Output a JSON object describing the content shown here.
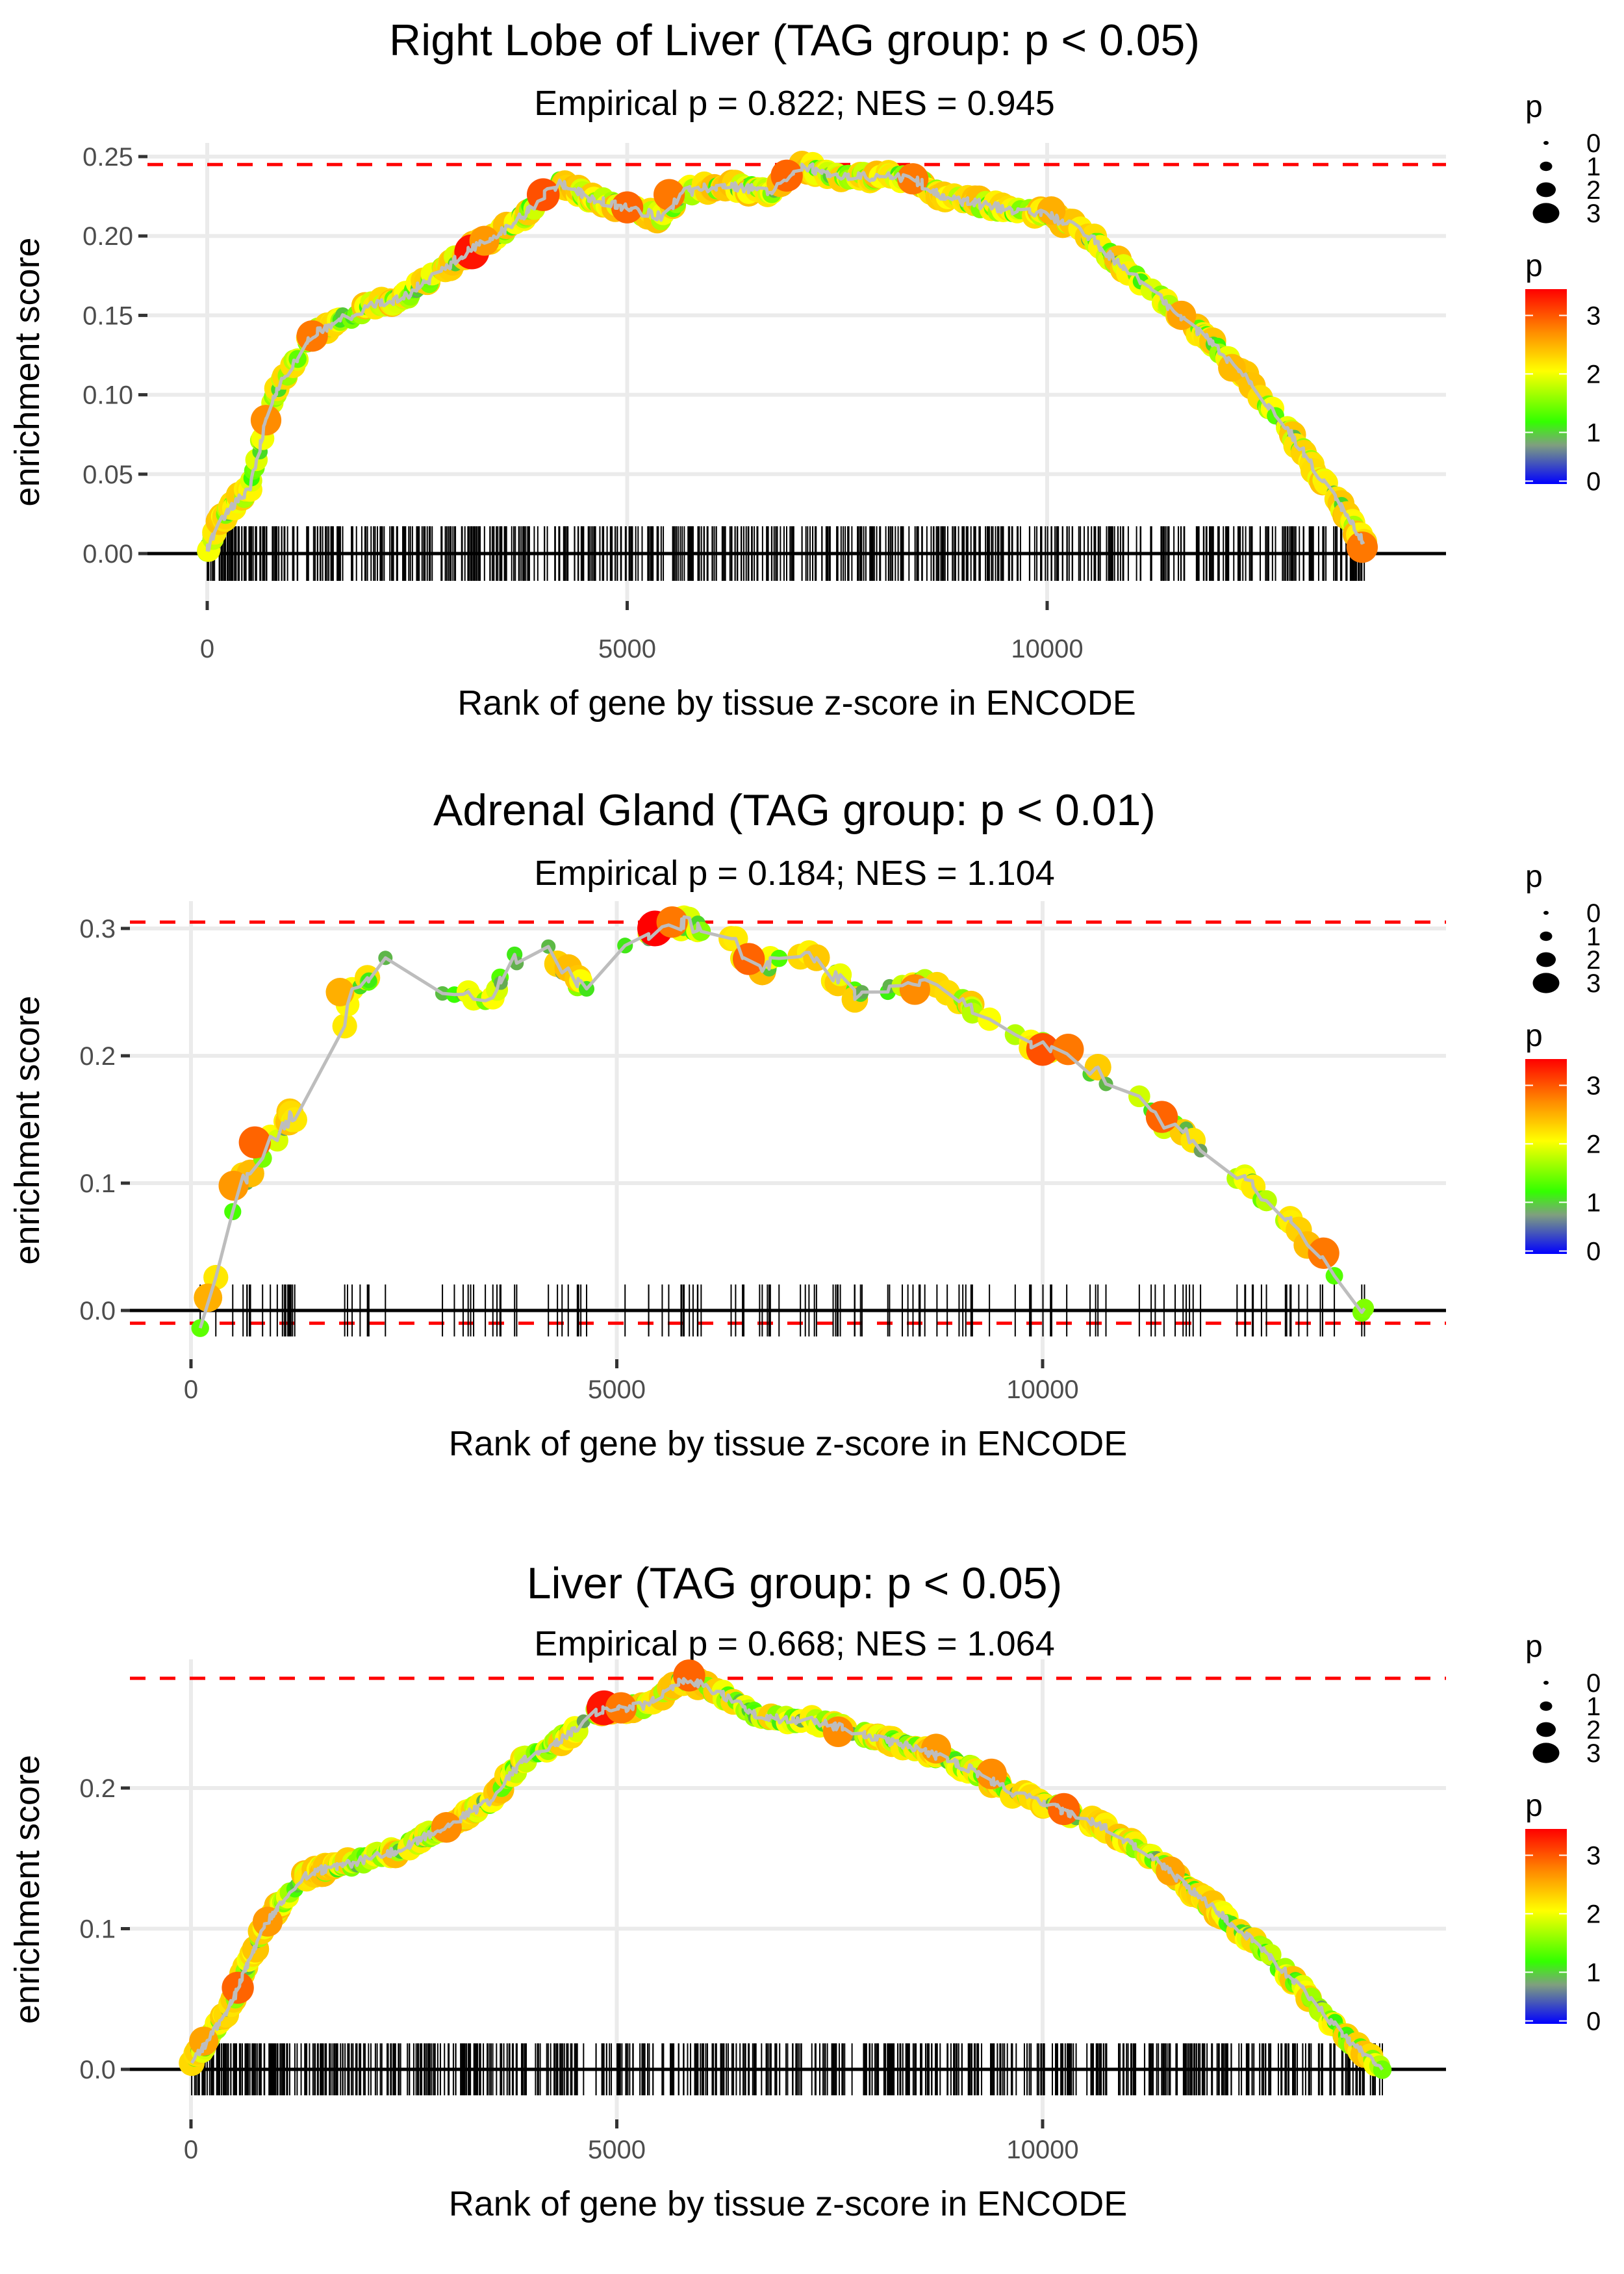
{
  "chart_data": [
    {
      "type": "line",
      "title": "Right Lobe of Liver (TAG group: p < 0.05)",
      "subtitle": "Empirical p = 0.822; NES = 0.945",
      "xlabel": "Rank of gene by tissue z-score in ENCODE",
      "ylabel": "enrichment score",
      "xlim": [
        -1000,
        14800
      ],
      "ylim": [
        -0.025,
        0.255
      ],
      "x_ticks": [
        0,
        5000,
        10000
      ],
      "x_tick_labels": [
        "0",
        "5000",
        "10000"
      ],
      "y_ticks": [
        0,
        0.05,
        0.1,
        0.15,
        0.2,
        0.25
      ],
      "y_tick_labels": [
        "0.00",
        "0.05",
        "0.10",
        "0.15",
        "0.20",
        "0.25"
      ],
      "max_es_line": 0.245,
      "min_es_line": null,
      "grid": true,
      "curve": [
        [
          0,
          0.003
        ],
        [
          150,
          0.02
        ],
        [
          300,
          0.03
        ],
        [
          500,
          0.04
        ],
        [
          600,
          0.06
        ],
        [
          700,
          0.085
        ],
        [
          850,
          0.105
        ],
        [
          1100,
          0.125
        ],
        [
          1250,
          0.138
        ],
        [
          1500,
          0.145
        ],
        [
          1900,
          0.155
        ],
        [
          2300,
          0.16
        ],
        [
          2700,
          0.175
        ],
        [
          3100,
          0.19
        ],
        [
          3600,
          0.205
        ],
        [
          4000,
          0.225
        ],
        [
          4200,
          0.233
        ],
        [
          4500,
          0.225
        ],
        [
          5000,
          0.218
        ],
        [
          5400,
          0.212
        ],
        [
          5700,
          0.228
        ],
        [
          6200,
          0.232
        ],
        [
          6700,
          0.228
        ],
        [
          7100,
          0.245
        ],
        [
          7500,
          0.236
        ],
        [
          8000,
          0.238
        ],
        [
          8400,
          0.236
        ],
        [
          8800,
          0.224
        ],
        [
          9400,
          0.218
        ],
        [
          10000,
          0.213
        ],
        [
          10400,
          0.205
        ],
        [
          10900,
          0.18
        ],
        [
          11400,
          0.158
        ],
        [
          11800,
          0.14
        ],
        [
          12200,
          0.12
        ],
        [
          12700,
          0.09
        ],
        [
          13100,
          0.06
        ],
        [
          13500,
          0.03
        ],
        [
          13800,
          0.005
        ]
      ],
      "highlight_points": [
        [
          700,
          0.084,
          3.2
        ],
        [
          1250,
          0.137,
          3.3
        ],
        [
          3150,
          0.19,
          3.8
        ],
        [
          3300,
          0.197,
          3.1
        ],
        [
          4000,
          0.226,
          3.5
        ],
        [
          5000,
          0.218,
          3.4
        ],
        [
          5500,
          0.226,
          3.3
        ],
        [
          6900,
          0.238,
          3.4
        ],
        [
          8400,
          0.236,
          3.3
        ],
        [
          10050,
          0.216,
          2.9
        ],
        [
          11600,
          0.15,
          3.0
        ],
        [
          12200,
          0.117,
          2.8
        ],
        [
          13750,
          0.004,
          3.3
        ]
      ],
      "point_density": 620,
      "rug_count": 620,
      "seed": 11
    },
    {
      "type": "line",
      "title": "Adrenal Gland (TAG group: p < 0.01)",
      "subtitle": "Empirical p = 0.184; NES = 1.104",
      "xlabel": "Rank of gene by tissue z-score in ENCODE",
      "ylabel": "enrichment score",
      "xlim": [
        -700,
        14700
      ],
      "ylim": [
        -0.035,
        0.32
      ],
      "x_ticks": [
        0,
        5000,
        10000
      ],
      "x_tick_labels": [
        "0",
        "5000",
        "10000"
      ],
      "y_ticks": [
        0,
        0.1,
        0.2,
        0.3
      ],
      "y_tick_labels": [
        "0.0",
        "0.1",
        "0.2",
        "0.3"
      ],
      "max_es_line": 0.305,
      "min_es_line": -0.01,
      "grid": true,
      "curve": [
        [
          100,
          -0.01
        ],
        [
          200,
          0.01
        ],
        [
          400,
          0.04
        ],
        [
          500,
          0.08
        ],
        [
          600,
          0.1
        ],
        [
          900,
          0.13
        ],
        [
          1100,
          0.145
        ],
        [
          1400,
          0.17
        ],
        [
          1500,
          0.16
        ],
        [
          1700,
          0.195
        ],
        [
          1800,
          0.22
        ],
        [
          1850,
          0.25
        ],
        [
          2200,
          0.27
        ],
        [
          2300,
          0.275
        ],
        [
          2900,
          0.255
        ],
        [
          3500,
          0.245
        ],
        [
          3800,
          0.275
        ],
        [
          4200,
          0.28
        ],
        [
          4700,
          0.245
        ],
        [
          5000,
          0.285
        ],
        [
          5400,
          0.295
        ],
        [
          5800,
          0.305
        ],
        [
          6400,
          0.29
        ],
        [
          6600,
          0.27
        ],
        [
          7200,
          0.28
        ],
        [
          7800,
          0.25
        ],
        [
          8300,
          0.255
        ],
        [
          8800,
          0.26
        ],
        [
          9200,
          0.235
        ],
        [
          9800,
          0.21
        ],
        [
          10200,
          0.205
        ],
        [
          10700,
          0.185
        ],
        [
          11400,
          0.15
        ],
        [
          12000,
          0.125
        ],
        [
          12600,
          0.09
        ],
        [
          13200,
          0.05
        ],
        [
          13800,
          0.0
        ]
      ],
      "highlight_points": [
        [
          200,
          0.01,
          2.9
        ],
        [
          500,
          0.098,
          3.1
        ],
        [
          750,
          0.132,
          3.4
        ],
        [
          1750,
          0.25,
          2.9
        ],
        [
          5450,
          0.3,
          3.9
        ],
        [
          5650,
          0.305,
          3.3
        ],
        [
          6550,
          0.276,
          3.4
        ],
        [
          8500,
          0.252,
          3.2
        ],
        [
          10000,
          0.205,
          3.5
        ],
        [
          10300,
          0.205,
          3.3
        ],
        [
          11400,
          0.152,
          3.4
        ],
        [
          13300,
          0.045,
          3.3
        ]
      ],
      "point_density": 150,
      "rug_count": 150,
      "seed": 23
    },
    {
      "type": "line",
      "title": "Liver (TAG group: p < 0.05)",
      "subtitle": "Empirical p = 0.668; NES = 1.064",
      "xlabel": "Rank of gene by tissue z-score in ENCODE",
      "ylabel": "enrichment score",
      "xlim": [
        -700,
        14700
      ],
      "ylim": [
        -0.04,
        0.3
      ],
      "x_ticks": [
        0,
        5000,
        10000
      ],
      "x_tick_labels": [
        "0",
        "5000",
        "10000"
      ],
      "y_ticks": [
        0,
        0.1,
        0.2
      ],
      "y_tick_labels": [
        "0.0",
        "0.1",
        "0.2"
      ],
      "max_es_line": 0.278,
      "min_es_line": null,
      "grid": true,
      "curve": [
        [
          0,
          0.003
        ],
        [
          300,
          0.03
        ],
        [
          500,
          0.05
        ],
        [
          700,
          0.08
        ],
        [
          900,
          0.105
        ],
        [
          1200,
          0.13
        ],
        [
          1400,
          0.14
        ],
        [
          1800,
          0.145
        ],
        [
          2400,
          0.155
        ],
        [
          2900,
          0.17
        ],
        [
          3500,
          0.19
        ],
        [
          3900,
          0.22
        ],
        [
          4300,
          0.232
        ],
        [
          4800,
          0.255
        ],
        [
          5300,
          0.258
        ],
        [
          5800,
          0.278
        ],
        [
          6200,
          0.268
        ],
        [
          6700,
          0.25
        ],
        [
          7300,
          0.248
        ],
        [
          7800,
          0.24
        ],
        [
          8500,
          0.228
        ],
        [
          9100,
          0.215
        ],
        [
          9600,
          0.198
        ],
        [
          10200,
          0.185
        ],
        [
          10800,
          0.17
        ],
        [
          11300,
          0.15
        ],
        [
          11900,
          0.12
        ],
        [
          12500,
          0.09
        ],
        [
          13000,
          0.06
        ],
        [
          13600,
          0.02
        ],
        [
          14000,
          0.0
        ]
      ],
      "highlight_points": [
        [
          150,
          0.02,
          3.0
        ],
        [
          550,
          0.058,
          3.4
        ],
        [
          900,
          0.105,
          3.1
        ],
        [
          3000,
          0.172,
          3.2
        ],
        [
          4850,
          0.257,
          3.8
        ],
        [
          5050,
          0.257,
          3.3
        ],
        [
          5850,
          0.28,
          3.4
        ],
        [
          7600,
          0.24,
          3.2
        ],
        [
          8750,
          0.228,
          3.1
        ],
        [
          9400,
          0.21,
          3.2
        ],
        [
          10250,
          0.185,
          3.4
        ],
        [
          11500,
          0.141,
          3.0
        ]
      ],
      "point_density": 700,
      "rug_count": 700,
      "seed": 37
    }
  ],
  "legend": {
    "size_title": "p",
    "size_labels": [
      "0",
      "1",
      "2",
      "3"
    ],
    "color_title": "p",
    "color_labels": [
      "3",
      "2",
      "1",
      "0"
    ],
    "color_stops": [
      "#ff0000",
      "#ff8c00",
      "#ffff00",
      "#33ff00",
      "#7f7f7f",
      "#0000ff"
    ]
  }
}
